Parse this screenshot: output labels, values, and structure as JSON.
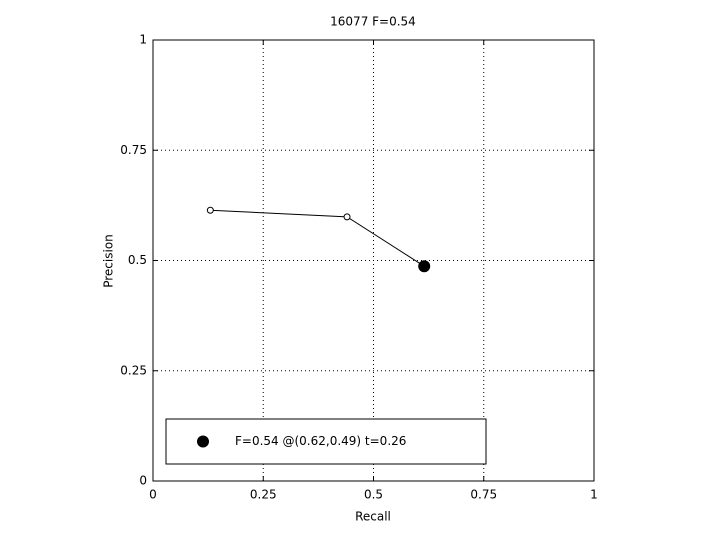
{
  "chart_data": {
    "type": "line",
    "title": "16077 F=0.54",
    "x_label": "Recall",
    "y_label": "Precision",
    "xlim": [
      0,
      1
    ],
    "ylim": [
      0,
      1
    ],
    "xticks": [
      0,
      0.25,
      0.5,
      0.75,
      1
    ],
    "yticks": [
      0,
      0.25,
      0.5,
      0.75,
      1
    ],
    "grid": true,
    "legend_location": "lower left",
    "series": [
      {
        "color": "#000000",
        "marker": "open",
        "linestyle": "solid",
        "x": [
          0.13,
          0.44,
          0.615
        ],
        "values": [
          0.614,
          0.599,
          0.487
        ]
      },
      {
        "name": "F=0.54 @(0.62,0.49) t=0.26",
        "color": "#000000",
        "marker": "filled",
        "linestyle": "none",
        "x": [
          0.615
        ],
        "values": [
          0.487
        ]
      }
    ]
  }
}
